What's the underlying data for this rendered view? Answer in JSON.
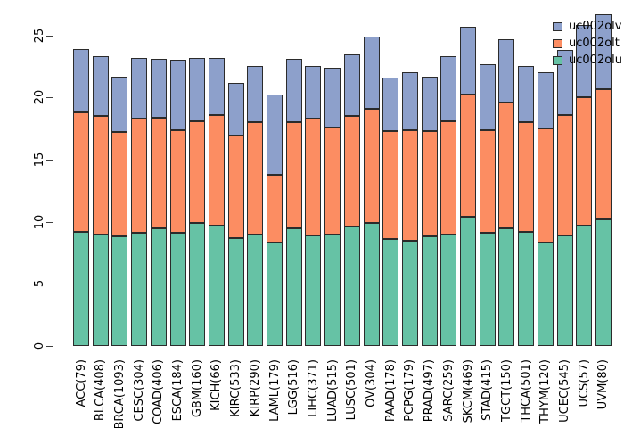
{
  "figure_background": "#ffffff",
  "chart_data": {
    "type": "bar",
    "stacked": true,
    "title": "",
    "xlabel": "",
    "ylabel": "",
    "grid": false,
    "legend_position": "top-right",
    "legend_order_top_to_bottom": [
      "uc002olv",
      "uc002olt",
      "uc002olu"
    ],
    "yticks": [
      0,
      5,
      10,
      15,
      20,
      25
    ],
    "ylim": [
      0,
      27
    ],
    "axis_color": "#3f3f3f",
    "bar_border_color": "#2b2b2b",
    "categories": [
      "ACC(79)",
      "BLCA(408)",
      "BRCA(1093)",
      "CESC(304)",
      "COAD(406)",
      "ESCA(184)",
      "GBM(160)",
      "KICH(66)",
      "KIRC(533)",
      "KIRP(290)",
      "LAML(179)",
      "LGG(516)",
      "LIHC(371)",
      "LUAD(515)",
      "LUSC(501)",
      "OV(304)",
      "PAAD(178)",
      "PCPG(179)",
      "PRAD(497)",
      "SARC(259)",
      "SKCM(469)",
      "STAD(415)",
      "TGCT(150)",
      "THCA(501)",
      "THYM(120)",
      "UCEC(545)",
      "UCS(57)",
      "UVM(80)"
    ],
    "series": [
      {
        "name": "uc002olu",
        "color": "#66C2A5",
        "stack_position": "bottom",
        "values": [
          9.2,
          9.0,
          8.8,
          9.1,
          9.5,
          9.1,
          9.9,
          9.7,
          8.7,
          9.0,
          8.3,
          9.5,
          8.9,
          9.0,
          9.6,
          9.9,
          8.6,
          8.5,
          8.8,
          9.0,
          10.4,
          9.1,
          9.5,
          9.2,
          8.3,
          8.9,
          9.7,
          10.2
        ]
      },
      {
        "name": "uc002olt",
        "color": "#FC8D62",
        "stack_position": "middle",
        "values": [
          9.6,
          9.5,
          8.4,
          9.2,
          8.9,
          8.3,
          8.2,
          8.9,
          8.2,
          9.0,
          5.5,
          8.5,
          9.4,
          8.6,
          8.9,
          9.2,
          8.7,
          8.9,
          8.5,
          9.1,
          9.8,
          8.3,
          10.1,
          8.8,
          9.2,
          9.7,
          10.3,
          10.5
        ]
      },
      {
        "name": "uc002olv",
        "color": "#8DA0CB",
        "stack_position": "top",
        "values": [
          5.1,
          4.8,
          4.5,
          4.9,
          4.7,
          5.6,
          5.1,
          4.6,
          4.3,
          4.5,
          6.4,
          5.1,
          4.2,
          4.8,
          5.0,
          5.8,
          4.3,
          4.6,
          4.4,
          5.2,
          5.5,
          5.3,
          5.1,
          4.5,
          4.5,
          5.2,
          5.8,
          6.0
        ]
      }
    ]
  }
}
